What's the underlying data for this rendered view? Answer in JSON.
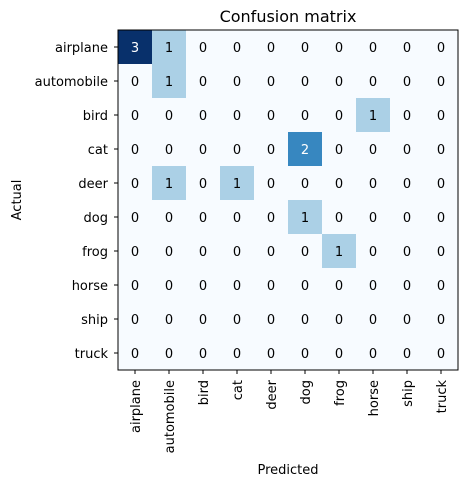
{
  "chart_data": {
    "type": "heatmap",
    "title": "Confusion matrix",
    "xlabel": "Predicted",
    "ylabel": "Actual",
    "x_categories": [
      "airplane",
      "automobile",
      "bird",
      "cat",
      "deer",
      "dog",
      "frog",
      "horse",
      "ship",
      "truck"
    ],
    "y_categories": [
      "airplane",
      "automobile",
      "bird",
      "cat",
      "deer",
      "dog",
      "frog",
      "horse",
      "ship",
      "truck"
    ],
    "values": [
      [
        3,
        1,
        0,
        0,
        0,
        0,
        0,
        0,
        0,
        0
      ],
      [
        0,
        1,
        0,
        0,
        0,
        0,
        0,
        0,
        0,
        0
      ],
      [
        0,
        0,
        0,
        0,
        0,
        0,
        0,
        1,
        0,
        0
      ],
      [
        0,
        0,
        0,
        0,
        0,
        2,
        0,
        0,
        0,
        0
      ],
      [
        0,
        1,
        0,
        1,
        0,
        0,
        0,
        0,
        0,
        0
      ],
      [
        0,
        0,
        0,
        0,
        0,
        1,
        0,
        0,
        0,
        0
      ],
      [
        0,
        0,
        0,
        0,
        0,
        0,
        1,
        0,
        0,
        0
      ],
      [
        0,
        0,
        0,
        0,
        0,
        0,
        0,
        0,
        0,
        0
      ],
      [
        0,
        0,
        0,
        0,
        0,
        0,
        0,
        0,
        0,
        0
      ],
      [
        0,
        0,
        0,
        0,
        0,
        0,
        0,
        0,
        0,
        0
      ]
    ],
    "colormap": "Blues",
    "value_range": [
      0,
      3
    ],
    "legend": "none",
    "grid": false
  }
}
